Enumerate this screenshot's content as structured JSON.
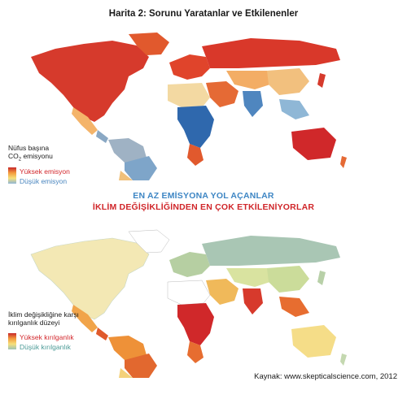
{
  "title": "Harita 2: Sorunu Yaratanlar ve Etkilenenler",
  "legend_emission": {
    "title_line1": "Nüfus başına",
    "title_line2_main": "CO",
    "title_line2_sub": "2",
    "title_line2_rest": " emisyonu",
    "high_label": "Yüksek emisyon",
    "low_label": "Düşük emisyon"
  },
  "headline": {
    "line1": "EN AZ EMİSYONA YOL AÇANLAR",
    "line2": "İKLİM DEĞİŞİKLİĞİNDEN EN ÇOK ETKİLENİYORLAR"
  },
  "legend_vulnerability": {
    "title_line1": "İklim değişikliğine karşı",
    "title_line2": "kırılganlık düzeyi",
    "high_label": "Yüksek kırılganlık",
    "low_label": "Düşük kırılganlık"
  },
  "source": "Kaynak: www.skepticalscience.com, 2012",
  "colors": {
    "high": "#c8282a",
    "mid_high": "#f39a3c",
    "mid": "#f6e07a",
    "low_emission": "#8fb7d6",
    "very_low_emission": "#2f68ad",
    "low_vulnerability": "#9fc3b4"
  }
}
